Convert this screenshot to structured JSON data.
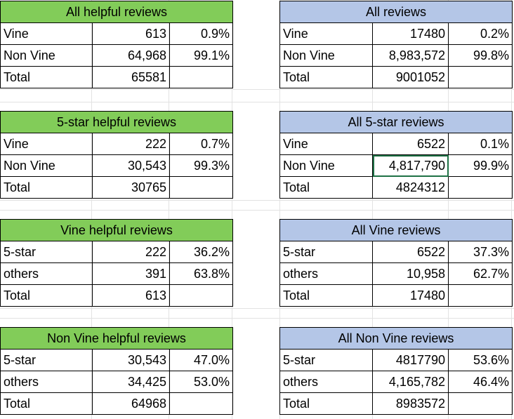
{
  "tables": [
    {
      "title": "All helpful reviews",
      "theme": "#82cc59",
      "rows": [
        [
          "Vine",
          "613",
          "0.9%"
        ],
        [
          "Non Vine",
          "64,968",
          "99.1%"
        ],
        [
          "Total",
          "65581",
          ""
        ]
      ]
    },
    {
      "title": "All reviews",
      "theme": "#b4c6e7",
      "rows": [
        [
          "Vine",
          "17480",
          "0.2%"
        ],
        [
          "Non Vine",
          "8,983,572",
          "99.8%"
        ],
        [
          "Total",
          "9001052",
          ""
        ]
      ]
    },
    {
      "title": "5-star helpful reviews",
      "theme": "#82cc59",
      "rows": [
        [
          "Vine",
          "222",
          "0.7%"
        ],
        [
          "Non Vine",
          "30,543",
          "99.3%"
        ],
        [
          "Total",
          "30765",
          ""
        ]
      ]
    },
    {
      "title": "All 5-star reviews",
      "theme": "#b4c6e7",
      "rows": [
        [
          "Vine",
          "6522",
          "0.1%"
        ],
        [
          "Non Vine",
          "4,817,790",
          "99.9%"
        ],
        [
          "Total",
          "4824312",
          ""
        ]
      ]
    },
    {
      "title": "Vine helpful reviews",
      "theme": "#82cc59",
      "rows": [
        [
          "5-star",
          "222",
          "36.2%"
        ],
        [
          "others",
          "391",
          "63.8%"
        ],
        [
          "Total",
          "613",
          ""
        ]
      ]
    },
    {
      "title": "All Vine reviews",
      "theme": "#b4c6e7",
      "rows": [
        [
          "5-star",
          "6522",
          "37.3%"
        ],
        [
          "others",
          "10,958",
          "62.7%"
        ],
        [
          "Total",
          "17480",
          ""
        ]
      ]
    },
    {
      "title": "Non Vine helpful reviews",
      "theme": "#82cc59",
      "rows": [
        [
          "5-star",
          "30,543",
          "47.0%"
        ],
        [
          "others",
          "34,425",
          "53.0%"
        ],
        [
          "Total",
          "64968",
          ""
        ]
      ]
    },
    {
      "title": "All Non Vine reviews",
      "theme": "#b4c6e7",
      "rows": [
        [
          "5-star",
          "4817790",
          "53.6%"
        ],
        [
          "others",
          "4,165,782",
          "46.4%"
        ],
        [
          "Total",
          "8983572",
          ""
        ]
      ]
    }
  ]
}
